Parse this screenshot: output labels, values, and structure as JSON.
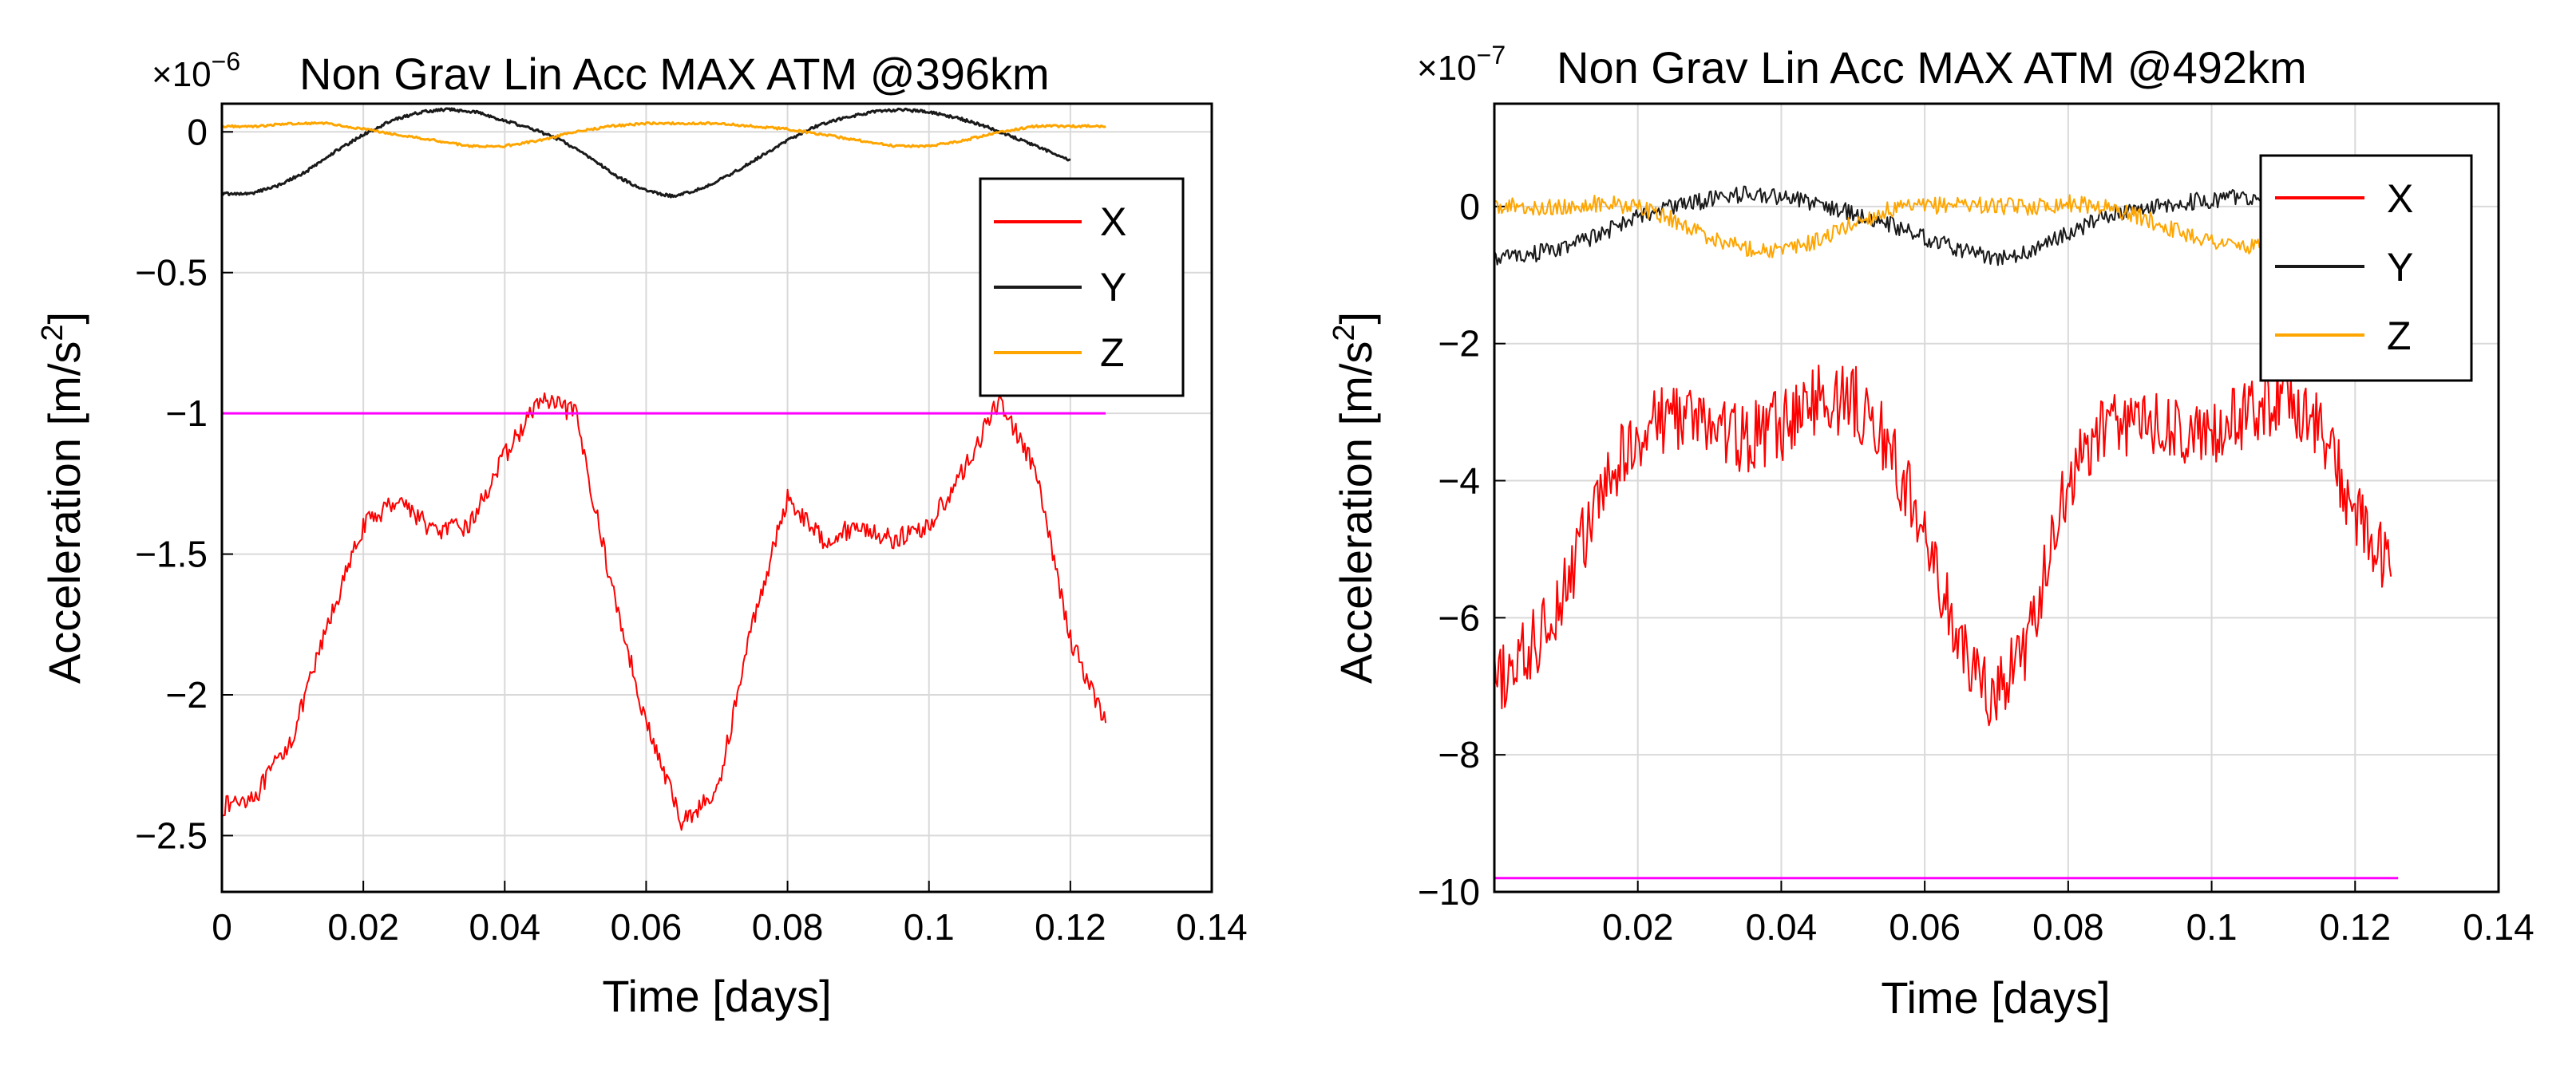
{
  "chart_data": [
    {
      "type": "line",
      "title": "Non Grav Lin Acc MAX ATM @396km",
      "exponent_label": "×10",
      "exponent_power": "−6",
      "xlabel": "Time [days]",
      "ylabel_prefix": "Acceleration [m/s",
      "ylabel_power": "2",
      "ylabel_suffix": "]",
      "xlim": [
        0,
        0.14
      ],
      "ylim": [
        -2.7,
        0.1
      ],
      "xticks": [
        0,
        0.02,
        0.04,
        0.06,
        0.08,
        0.1,
        0.12,
        0.14
      ],
      "xtick_labels": [
        "0",
        "0.02",
        "0.04",
        "0.06",
        "0.08",
        "0.1",
        "0.12",
        "0.14"
      ],
      "yticks": [
        0,
        -0.5,
        -1,
        -1.5,
        -2,
        -2.5
      ],
      "ytick_labels": [
        "0",
        "−0.5",
        "−1",
        "−1.5",
        "−2",
        "−2.5"
      ],
      "grid": true,
      "legend_position": "right",
      "series": [
        {
          "name": "X",
          "color": "#ff0000",
          "noise": 0.035,
          "x": [
            0,
            0.005,
            0.01,
            0.015,
            0.02,
            0.025,
            0.03,
            0.035,
            0.04,
            0.045,
            0.05,
            0.055,
            0.06,
            0.065,
            0.07,
            0.075,
            0.08,
            0.085,
            0.09,
            0.095,
            0.1,
            0.105,
            0.11,
            0.115,
            0.12,
            0.125
          ],
          "y": [
            -2.4,
            -2.35,
            -2.15,
            -1.75,
            -1.4,
            -1.3,
            -1.42,
            -1.4,
            -1.15,
            -0.95,
            -1.0,
            -1.6,
            -2.1,
            -2.45,
            -2.35,
            -1.75,
            -1.3,
            -1.45,
            -1.4,
            -1.45,
            -1.4,
            -1.2,
            -0.95,
            -1.2,
            -1.8,
            -2.1
          ]
        },
        {
          "name": "Y",
          "color": "#1a1a1a",
          "noise": 0.005,
          "x": [
            0,
            0.004,
            0.008,
            0.012,
            0.016,
            0.02,
            0.024,
            0.028,
            0.032,
            0.036,
            0.04,
            0.044,
            0.048,
            0.052,
            0.056,
            0.06,
            0.064,
            0.068,
            0.072,
            0.076,
            0.08,
            0.084,
            0.088,
            0.092,
            0.096,
            0.1,
            0.104,
            0.108,
            0.112,
            0.116,
            0.12
          ],
          "y": [
            -0.22,
            -0.22,
            -0.19,
            -0.14,
            -0.07,
            -0.01,
            0.04,
            0.07,
            0.08,
            0.07,
            0.04,
            0.01,
            -0.03,
            -0.09,
            -0.16,
            -0.21,
            -0.23,
            -0.2,
            -0.15,
            -0.09,
            -0.03,
            0.02,
            0.05,
            0.07,
            0.08,
            0.07,
            0.05,
            0.02,
            -0.02,
            -0.06,
            -0.1
          ]
        },
        {
          "name": "Z",
          "color": "#ffa500",
          "noise": 0.004,
          "x": [
            0,
            0.005,
            0.01,
            0.015,
            0.02,
            0.025,
            0.03,
            0.035,
            0.04,
            0.045,
            0.05,
            0.055,
            0.06,
            0.065,
            0.07,
            0.075,
            0.08,
            0.085,
            0.09,
            0.095,
            0.1,
            0.105,
            0.11,
            0.115,
            0.12,
            0.125
          ],
          "y": [
            0.02,
            0.02,
            0.03,
            0.03,
            0.01,
            -0.01,
            -0.03,
            -0.05,
            -0.05,
            -0.03,
            0.0,
            0.02,
            0.03,
            0.03,
            0.03,
            0.02,
            0.01,
            -0.01,
            -0.03,
            -0.05,
            -0.05,
            -0.03,
            0.0,
            0.02,
            0.02,
            0.02
          ]
        },
        {
          "name": "",
          "color": "#ff00ff",
          "noise": 0,
          "x": [
            0.0,
            0.125
          ],
          "y": [
            -1.0,
            -1.0
          ]
        }
      ]
    },
    {
      "type": "line",
      "title": "Non Grav Lin Acc MAX ATM @492km",
      "exponent_label": "×10",
      "exponent_power": "−7",
      "xlabel": "Time [days]",
      "ylabel_prefix": "Acceleration [m/s",
      "ylabel_power": "2",
      "ylabel_suffix": "]",
      "xlim": [
        0,
        0.14
      ],
      "ylim": [
        -10,
        1.5
      ],
      "xticks": [
        0.02,
        0.04,
        0.06,
        0.08,
        0.1,
        0.12,
        0.14
      ],
      "xtick_labels": [
        "0.02",
        "0.04",
        "0.06",
        "0.08",
        "0.1",
        "0.12",
        "0.14"
      ],
      "yticks": [
        0,
        -2,
        -4,
        -6,
        -8,
        -10
      ],
      "ytick_labels": [
        "0",
        "−2",
        "−4",
        "−6",
        "−8",
        "−10"
      ],
      "grid": true,
      "legend_position": "top-right",
      "series": [
        {
          "name": "X",
          "color": "#ff0000",
          "noise": 0.13,
          "x": [
            0,
            0.005,
            0.01,
            0.015,
            0.02,
            0.025,
            0.03,
            0.035,
            0.04,
            0.045,
            0.05,
            0.055,
            0.06,
            0.065,
            0.07,
            0.075,
            0.08,
            0.085,
            0.09,
            0.095,
            0.1,
            0.105,
            0.11,
            0.115,
            0.12,
            0.125
          ],
          "y": [
            -7.0,
            -6.5,
            -5.5,
            -4.2,
            -3.3,
            -3.0,
            -3.2,
            -3.4,
            -3.2,
            -2.8,
            -2.8,
            -3.5,
            -4.8,
            -6.5,
            -7.2,
            -6.2,
            -4.0,
            -3.2,
            -3.1,
            -3.3,
            -3.4,
            -3.0,
            -2.7,
            -3.2,
            -4.5,
            -5.4
          ]
        },
        {
          "name": "Y",
          "color": "#1a1a1a",
          "noise": 0.03,
          "x": [
            0,
            0.005,
            0.01,
            0.015,
            0.02,
            0.025,
            0.03,
            0.035,
            0.04,
            0.045,
            0.05,
            0.055,
            0.06,
            0.065,
            0.07,
            0.075,
            0.08,
            0.085,
            0.09,
            0.095,
            0.1,
            0.105,
            0.11,
            0.115
          ],
          "y": [
            -0.75,
            -0.7,
            -0.6,
            -0.4,
            -0.15,
            0.0,
            0.1,
            0.18,
            0.15,
            0.05,
            -0.1,
            -0.25,
            -0.45,
            -0.65,
            -0.75,
            -0.65,
            -0.4,
            -0.15,
            0.0,
            0.05,
            0.1,
            0.15,
            0.15,
            0.12
          ]
        },
        {
          "name": "Z",
          "color": "#ffa500",
          "noise": 0.03,
          "x": [
            0,
            0.005,
            0.01,
            0.015,
            0.02,
            0.025,
            0.03,
            0.035,
            0.04,
            0.045,
            0.05,
            0.055,
            0.06,
            0.065,
            0.07,
            0.075,
            0.08,
            0.085,
            0.09,
            0.095,
            0.1,
            0.105,
            0.11
          ],
          "y": [
            0.0,
            0.0,
            0.0,
            0.05,
            0.0,
            -0.2,
            -0.45,
            -0.6,
            -0.65,
            -0.5,
            -0.25,
            -0.05,
            0.0,
            0.05,
            0.0,
            0.0,
            0.05,
            0.0,
            -0.15,
            -0.35,
            -0.5,
            -0.6,
            -0.6
          ]
        },
        {
          "name": "",
          "color": "#ff00ff",
          "noise": 0,
          "x": [
            0.0,
            0.126
          ],
          "y": [
            -9.8,
            -9.8
          ]
        }
      ]
    }
  ]
}
